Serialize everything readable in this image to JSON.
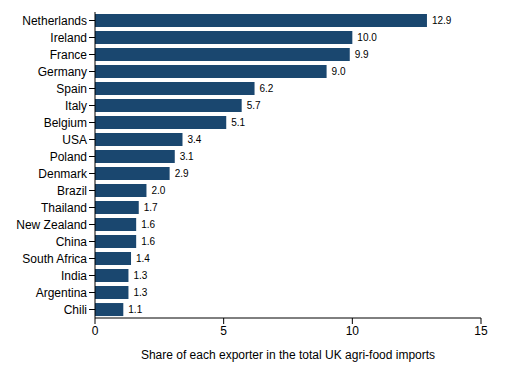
{
  "chart_data": {
    "type": "bar",
    "orientation": "horizontal",
    "xlabel": "Share of each exporter in the total UK agri-food imports",
    "categories": [
      "Netherlands",
      "Ireland",
      "France",
      "Germany",
      "Spain",
      "Italy",
      "Belgium",
      "USA",
      "Poland",
      "Denmark",
      "Brazil",
      "Thailand",
      "New Zealand",
      "China",
      "South Africa",
      "India",
      "Argentina",
      "Chili"
    ],
    "values": [
      12.9,
      10.0,
      9.9,
      9.0,
      6.2,
      5.7,
      5.1,
      3.4,
      3.1,
      2.9,
      2.0,
      1.7,
      1.6,
      1.6,
      1.4,
      1.3,
      1.3,
      1.1
    ],
    "value_labels": [
      "12.9",
      "10.0",
      "9.9",
      "9.0",
      "6.2",
      "5.7",
      "5.1",
      "3.4",
      "3.1",
      "2.9",
      "2.0",
      "1.7",
      "1.6",
      "1.6",
      "1.4",
      "1.3",
      "1.3",
      "1.1"
    ],
    "data_labels": true,
    "color": "#1a476f",
    "xlim": [
      0,
      15
    ],
    "xticks": [
      0,
      5,
      10,
      15
    ],
    "grid": false
  }
}
